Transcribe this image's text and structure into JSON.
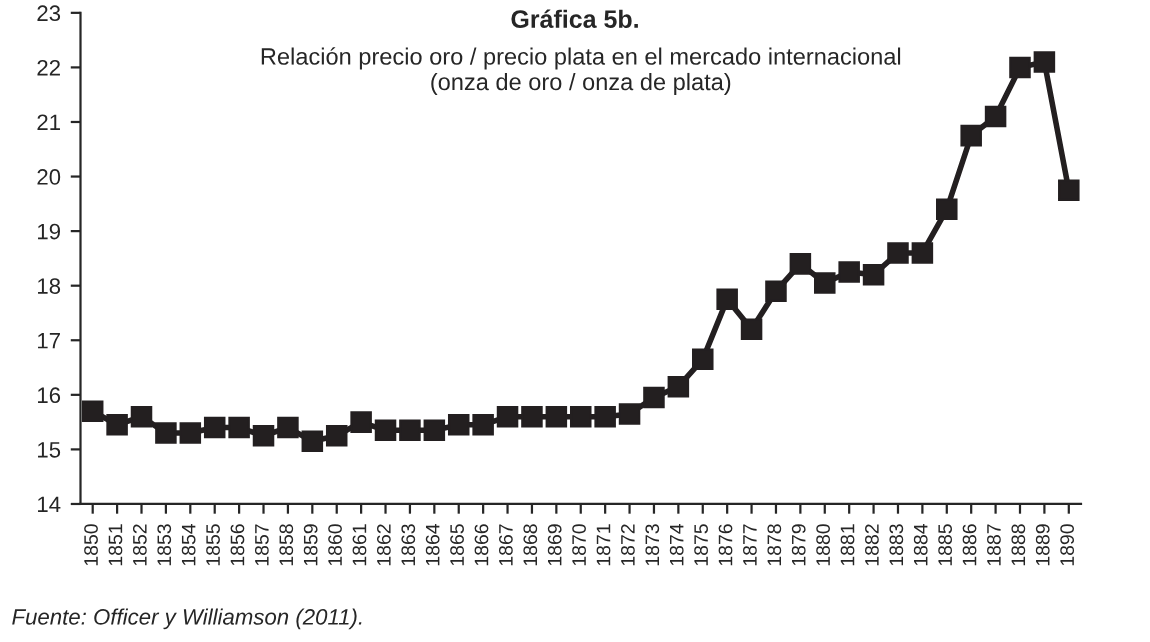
{
  "chart_data": {
    "type": "line",
    "title": "Gráfica 5b.",
    "subtitle": "Relación precio oro / precio plata en el mercado internacional\n(onza de oro / onza de plata)",
    "categories": [
      "1850",
      "1851",
      "1852",
      "1853",
      "1854",
      "1855",
      "1856",
      "1857",
      "1858",
      "1859",
      "1860",
      "1861",
      "1862",
      "1863",
      "1864",
      "1865",
      "1866",
      "1867",
      "1868",
      "1869",
      "1870",
      "1871",
      "1872",
      "1873",
      "1874",
      "1875",
      "1876",
      "1877",
      "1878",
      "1879",
      "1880",
      "1881",
      "1882",
      "1883",
      "1884",
      "1885",
      "1886",
      "1887",
      "1888",
      "1889",
      "1890"
    ],
    "series": [
      {
        "color": "#231f20",
        "values": [
          15.7,
          15.45,
          15.6,
          15.3,
          15.3,
          15.4,
          15.4,
          15.25,
          15.4,
          15.15,
          15.25,
          15.5,
          15.35,
          15.35,
          15.35,
          15.45,
          15.45,
          15.6,
          15.6,
          15.6,
          15.6,
          15.6,
          15.65,
          15.95,
          16.15,
          16.65,
          17.75,
          17.2,
          17.9,
          18.4,
          18.05,
          18.25,
          18.2,
          18.6,
          18.6,
          19.4,
          20.75,
          21.1,
          22.0,
          22.1,
          19.75
        ]
      }
    ],
    "ylim": [
      14,
      23
    ],
    "yticks": [
      14,
      15,
      16,
      17,
      18,
      19,
      20,
      21,
      22,
      23
    ],
    "marker": "square",
    "line_style": "solid",
    "grid": false,
    "legend": false,
    "annotations": [
      "Fuente: Officer y Williamson (2011)."
    ]
  }
}
